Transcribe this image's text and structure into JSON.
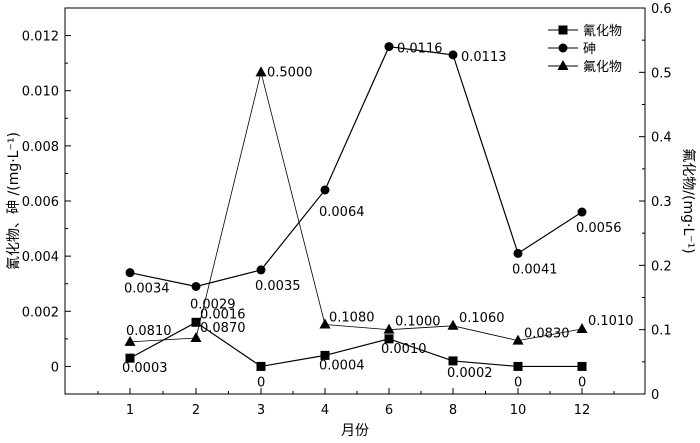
{
  "chart_data": {
    "type": "line",
    "categories": [
      "1",
      "2",
      "3",
      "4",
      "6",
      "8",
      "10",
      "12"
    ],
    "xlabel": "月份",
    "ylabel_left": "氰化物、砷 /(mg·L⁻¹)",
    "ylabel_right": "氟化物/(mg·L⁻¹)",
    "ylim_left": [
      -0.001,
      0.013
    ],
    "yticks_left": [
      0,
      0.002,
      0.004,
      0.006,
      0.008,
      0.01,
      0.012
    ],
    "ytick_labels_left": [
      "0",
      "0.002",
      "0.004",
      "0.006",
      "0.008",
      "0.010",
      "0.012"
    ],
    "ylim_right": [
      0,
      0.6
    ],
    "yticks_right": [
      0,
      0.1,
      0.2,
      0.3,
      0.4,
      0.5,
      0.6
    ],
    "ytick_labels_right": [
      "0",
      "0.1",
      "0.2",
      "0.3",
      "0.4",
      "0.5",
      "0.6"
    ],
    "legend_position": "top-right",
    "series": [
      {
        "name": "氰化物",
        "marker": "square",
        "axis": "left",
        "values": [
          0.0003,
          0.0016,
          0,
          0.0004,
          0.001,
          0.0002,
          0,
          0
        ],
        "labels": [
          "0.0003",
          "0.0016",
          "0",
          "0.0004",
          "0.0010",
          "0.0002",
          "0",
          "0"
        ]
      },
      {
        "name": "砷",
        "marker": "circle",
        "axis": "left",
        "values": [
          0.0034,
          0.0029,
          0.0035,
          0.0064,
          0.0116,
          0.0113,
          0.0041,
          0.0056
        ],
        "labels": [
          "0.0034",
          "0.0029",
          "0.0035",
          "0.0064",
          "0.0116",
          "0.0113",
          "0.0041",
          "0.0056"
        ]
      },
      {
        "name": "氟化物",
        "marker": "triangle",
        "axis": "right",
        "values": [
          0.081,
          0.087,
          0.5,
          0.108,
          0.1,
          0.106,
          0.083,
          0.101
        ],
        "labels": [
          "0.0810",
          "0.0870",
          "0.5000",
          "0.1080",
          "0.1000",
          "0.1060",
          "0.0830",
          "0.1010"
        ]
      }
    ]
  }
}
